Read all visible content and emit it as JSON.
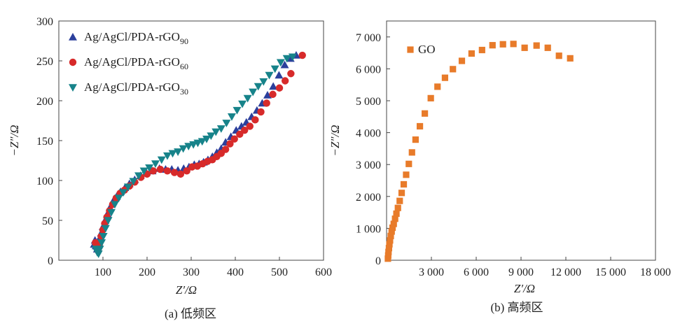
{
  "chart_data": [
    {
      "type": "scatter",
      "caption": "(a) 低频区",
      "xlabel": "Z′/Ω",
      "ylabel": "−Z″/Ω",
      "xlim": [
        0,
        600
      ],
      "ylim": [
        0,
        300
      ],
      "xticks": [
        100,
        200,
        300,
        400,
        500,
        600
      ],
      "yticks": [
        0,
        50,
        100,
        150,
        200,
        250,
        300
      ],
      "legend_position": "top-left",
      "series": [
        {
          "name": "Ag/AgCl/PDA-rGO",
          "subscript": "90",
          "marker": "triangle-up",
          "color": "#2b3f9c",
          "points": [
            [
              80,
              20
            ],
            [
              82,
              25
            ],
            [
              84,
              18
            ],
            [
              87,
              14
            ],
            [
              90,
              22
            ],
            [
              93,
              28
            ],
            [
              96,
              34
            ],
            [
              100,
              42
            ],
            [
              105,
              50
            ],
            [
              110,
              58
            ],
            [
              116,
              66
            ],
            [
              123,
              74
            ],
            [
              131,
              80
            ],
            [
              140,
              86
            ],
            [
              150,
              91
            ],
            [
              160,
              96
            ],
            [
              172,
              101
            ],
            [
              185,
              106
            ],
            [
              198,
              110
            ],
            [
              212,
              112
            ],
            [
              228,
              115
            ],
            [
              242,
              114
            ],
            [
              256,
              114
            ],
            [
              270,
              113
            ],
            [
              283,
              115
            ],
            [
              295,
              117
            ],
            [
              307,
              120
            ],
            [
              318,
              121
            ],
            [
              328,
              123
            ],
            [
              338,
              126
            ],
            [
              348,
              130
            ],
            [
              358,
              135
            ],
            [
              368,
              140
            ],
            [
              378,
              148
            ],
            [
              390,
              155
            ],
            [
              402,
              163
            ],
            [
              414,
              168
            ],
            [
              425,
              173
            ],
            [
              437,
              180
            ],
            [
              449,
              188
            ],
            [
              461,
              197
            ],
            [
              473,
              207
            ],
            [
              486,
              218
            ],
            [
              499,
              232
            ],
            [
              512,
              245
            ],
            [
              525,
              253
            ],
            [
              538,
              257
            ]
          ]
        },
        {
          "name": "Ag/AgCl/PDA-rGO",
          "subscript": "60",
          "marker": "circle",
          "color": "#d72a2a",
          "points": [
            [
              83,
              22
            ],
            [
              86,
              16
            ],
            [
              89,
              12
            ],
            [
              92,
              20
            ],
            [
              96,
              30
            ],
            [
              100,
              38
            ],
            [
              104,
              46
            ],
            [
              109,
              54
            ],
            [
              115,
              62
            ],
            [
              122,
              70
            ],
            [
              130,
              78
            ],
            [
              139,
              84
            ],
            [
              149,
              88
            ],
            [
              160,
              93
            ],
            [
              172,
              98
            ],
            [
              186,
              104
            ],
            [
              200,
              108
            ],
            [
              214,
              112
            ],
            [
              230,
              114
            ],
            [
              246,
              112
            ],
            [
              262,
              110
            ],
            [
              276,
              108
            ],
            [
              290,
              112
            ],
            [
              302,
              117
            ],
            [
              314,
              118
            ],
            [
              326,
              121
            ],
            [
              337,
              124
            ],
            [
              348,
              126
            ],
            [
              358,
              130
            ],
            [
              368,
              134
            ],
            [
              378,
              139
            ],
            [
              388,
              146
            ],
            [
              398,
              152
            ],
            [
              410,
              158
            ],
            [
              421,
              163
            ],
            [
              433,
              168
            ],
            [
              445,
              176
            ],
            [
              458,
              186
            ],
            [
              471,
              197
            ],
            [
              485,
              208
            ],
            [
              500,
              216
            ],
            [
              513,
              225
            ],
            [
              526,
              234
            ],
            [
              552,
              257
            ]
          ]
        },
        {
          "name": "Ag/AgCl/PDA-rGO",
          "subscript": "30",
          "marker": "triangle-down",
          "color": "#17838a",
          "points": [
            [
              84,
              14
            ],
            [
              87,
              10
            ],
            [
              90,
              8
            ],
            [
              93,
              14
            ],
            [
              97,
              22
            ],
            [
              101,
              30
            ],
            [
              106,
              40
            ],
            [
              112,
              50
            ],
            [
              119,
              60
            ],
            [
              127,
              70
            ],
            [
              136,
              78
            ],
            [
              146,
              85
            ],
            [
              157,
              92
            ],
            [
              169,
              99
            ],
            [
              181,
              106
            ],
            [
              193,
              112
            ],
            [
              205,
              116
            ],
            [
              219,
              121
            ],
            [
              233,
              126
            ],
            [
              246,
              131
            ],
            [
              258,
              134
            ],
            [
              270,
              136
            ],
            [
              282,
              140
            ],
            [
              294,
              143
            ],
            [
              305,
              145
            ],
            [
              315,
              147
            ],
            [
              325,
              149
            ],
            [
              335,
              152
            ],
            [
              345,
              156
            ],
            [
              356,
              161
            ],
            [
              368,
              165
            ],
            [
              380,
              172
            ],
            [
              392,
              180
            ],
            [
              404,
              188
            ],
            [
              416,
              196
            ],
            [
              428,
              203
            ],
            [
              440,
              211
            ],
            [
              452,
              218
            ],
            [
              464,
              224
            ],
            [
              477,
              232
            ],
            [
              490,
              240
            ],
            [
              503,
              248
            ],
            [
              517,
              253
            ],
            [
              530,
              255
            ]
          ]
        }
      ]
    },
    {
      "type": "scatter",
      "caption": "(b) 高频区",
      "xlabel": "Z′/Ω",
      "ylabel": "−Z″/Ω",
      "xlim": [
        0,
        18000
      ],
      "ylim": [
        0,
        7500
      ],
      "xticks": [
        3000,
        6000,
        9000,
        12000,
        15000,
        18000
      ],
      "xtick_labels": [
        "3 000",
        "6 000",
        "9 000",
        "12 000",
        "15 000",
        "18 000"
      ],
      "yticks": [
        0,
        1000,
        2000,
        3000,
        4000,
        5000,
        6000,
        7000
      ],
      "ytick_labels": [
        "0",
        "1 000",
        "2 000",
        "3 000",
        "4 000",
        "5 000",
        "6 000",
        "7 000"
      ],
      "legend_position": "top-left",
      "series": [
        {
          "name": "GO",
          "marker": "square",
          "color": "#e87b2a",
          "points": [
            [
              90,
              50
            ],
            [
              110,
              150
            ],
            [
              130,
              260
            ],
            [
              160,
              380
            ],
            [
              190,
              500
            ],
            [
              230,
              620
            ],
            [
              280,
              760
            ],
            [
              340,
              900
            ],
            [
              400,
              1020
            ],
            [
              480,
              1140
            ],
            [
              570,
              1300
            ],
            [
              660,
              1460
            ],
            [
              760,
              1640
            ],
            [
              880,
              1860
            ],
            [
              1010,
              2110
            ],
            [
              1150,
              2380
            ],
            [
              1310,
              2680
            ],
            [
              1490,
              3020
            ],
            [
              1700,
              3380
            ],
            [
              1940,
              3780
            ],
            [
              2230,
              4200
            ],
            [
              2560,
              4600
            ],
            [
              2960,
              5080
            ],
            [
              3410,
              5440
            ],
            [
              3910,
              5720
            ],
            [
              4440,
              5990
            ],
            [
              5040,
              6250
            ],
            [
              5690,
              6480
            ],
            [
              6390,
              6590
            ],
            [
              7090,
              6740
            ],
            [
              7790,
              6770
            ],
            [
              8490,
              6780
            ],
            [
              9240,
              6660
            ],
            [
              10040,
              6730
            ],
            [
              10790,
              6660
            ],
            [
              11540,
              6410
            ],
            [
              12290,
              6330
            ]
          ]
        }
      ]
    }
  ]
}
